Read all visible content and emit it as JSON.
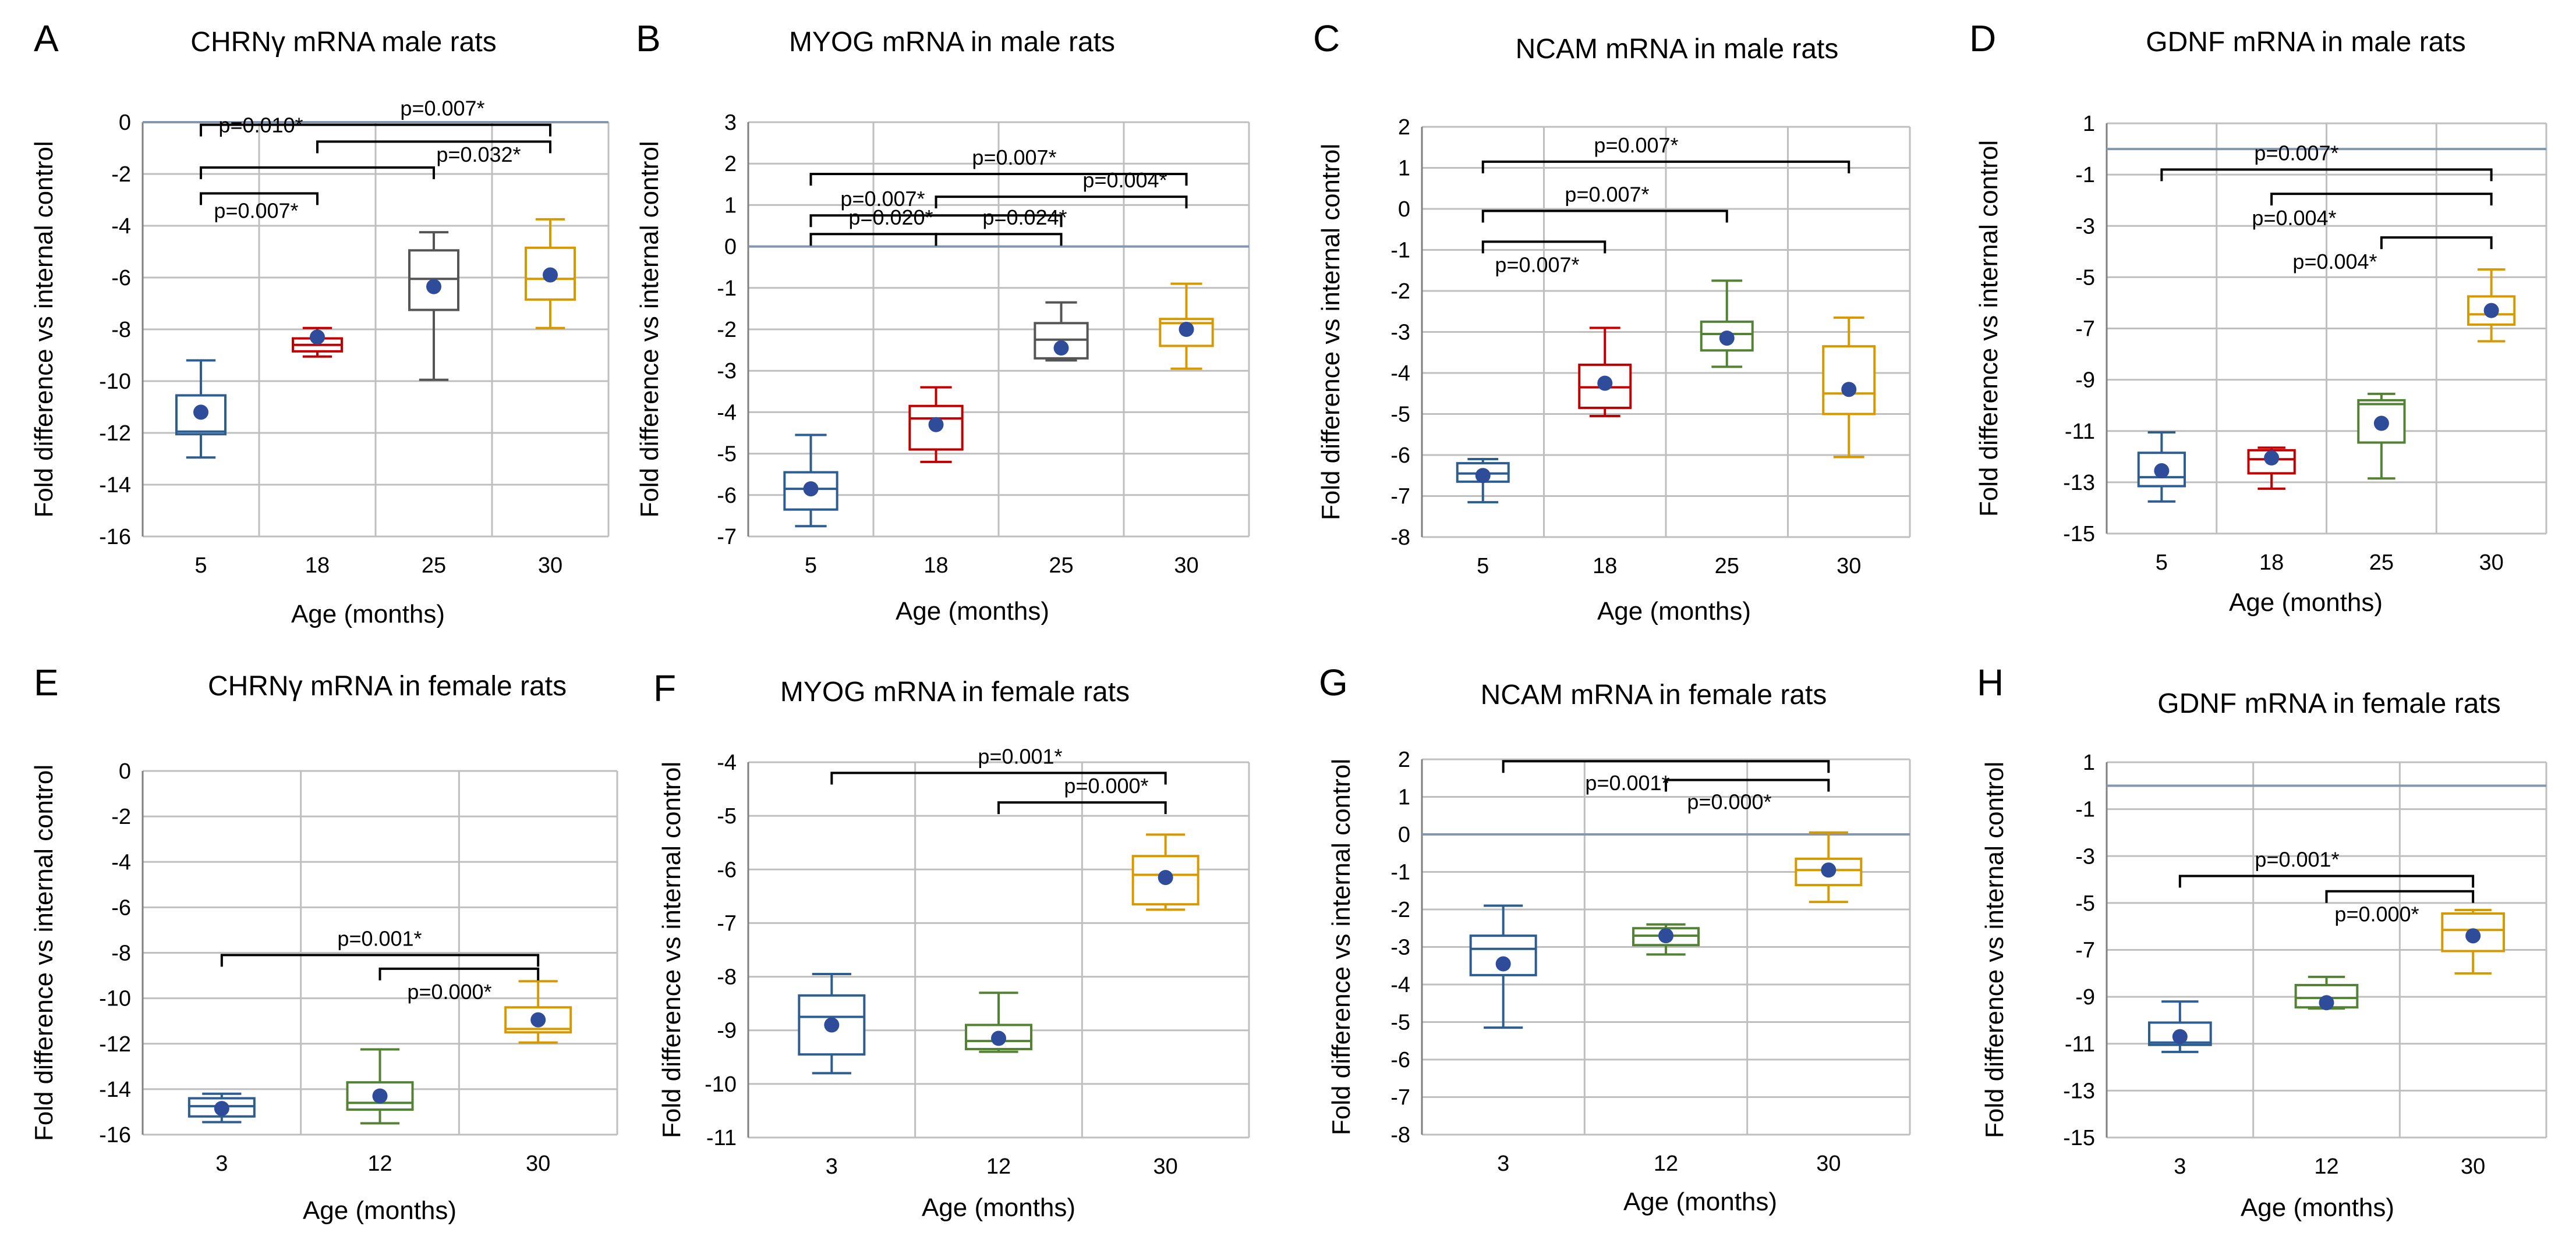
{
  "chart_data": [
    {
      "letter": "A",
      "title": "CHRNγ mRNA male rats",
      "type": "box",
      "xlabel": "Age (months)",
      "ylabel": "Fold difference vs internal control",
      "ylim": [
        -16,
        0
      ],
      "ytick_step": 2,
      "ytick_labels": [
        "-16",
        "-14",
        "-12",
        "-10",
        "-8",
        "-6",
        "-4",
        "-2",
        "0"
      ],
      "ref_line": 0,
      "categories": [
        "5",
        "18",
        "25",
        "30"
      ],
      "boxes": [
        {
          "category": "5",
          "min": -12.95,
          "q1": -12.05,
          "median": -11.95,
          "q3": -10.55,
          "max": -9.2,
          "mean": -11.2,
          "color": "#2E5D8F"
        },
        {
          "category": "18",
          "min": -9.05,
          "q1": -8.85,
          "median": -8.6,
          "q3": -8.35,
          "max": -7.95,
          "mean": -8.3,
          "color": "#C00000"
        },
        {
          "category": "25",
          "min": -9.95,
          "q1": -7.25,
          "median": -6.05,
          "q3": -4.95,
          "max": -4.25,
          "mean": -6.35,
          "color": "#555555"
        },
        {
          "category": "30",
          "min": -7.95,
          "q1": -6.85,
          "median": -6.05,
          "q3": -4.85,
          "max": -3.75,
          "mean": -5.9,
          "color": "#D69A00"
        }
      ],
      "significance": [
        {
          "from": "5",
          "to": "30",
          "y": -0.1,
          "label": "p=0.007*",
          "label_pos": "above"
        },
        {
          "from": "18",
          "to": "30",
          "y": -0.75,
          "label": "p=0.010*",
          "label_pos": "above-left"
        },
        {
          "from": "5",
          "to": "25",
          "y": -1.75,
          "label": "p=0.032*",
          "label_pos": "right"
        },
        {
          "from": "5",
          "to": "18",
          "y": -2.75,
          "label": "p=0.007*",
          "label_pos": "below"
        }
      ]
    },
    {
      "letter": "B",
      "title": "MYOG mRNA in male rats",
      "type": "box",
      "xlabel": "Age (months)",
      "ylabel": "Fold difference  vs internal control",
      "ylim": [
        -7,
        3
      ],
      "ytick_step": 1,
      "ytick_labels": [
        "-7",
        "-6",
        "-5",
        "-4",
        "-3",
        "-2",
        "-1",
        "0",
        "1",
        "2",
        "3"
      ],
      "ref_line": 0,
      "categories": [
        "5",
        "18",
        "25",
        "30"
      ],
      "boxes": [
        {
          "category": "5",
          "min": -6.75,
          "q1": -6.35,
          "median": -5.85,
          "q3": -5.45,
          "max": -4.55,
          "mean": -5.85,
          "color": "#2E5D8F"
        },
        {
          "category": "18",
          "min": -5.2,
          "q1": -4.9,
          "median": -4.15,
          "q3": -3.85,
          "max": -3.4,
          "mean": -4.3,
          "color": "#C00000"
        },
        {
          "category": "25",
          "min": -2.75,
          "q1": -2.7,
          "median": -2.25,
          "q3": -1.85,
          "max": -1.35,
          "mean": -2.45,
          "color": "#555555"
        },
        {
          "category": "30",
          "min": -2.95,
          "q1": -2.4,
          "median": -1.85,
          "q3": -1.75,
          "max": -0.9,
          "mean": -2.0,
          "color": "#D69A00"
        }
      ],
      "significance": [
        {
          "from": "5",
          "to": "30",
          "y": 1.75,
          "label": "p=0.007*",
          "label_pos": "above"
        },
        {
          "from": "18",
          "to": "30",
          "y": 1.2,
          "label": "p=0.004*",
          "label_pos": "above"
        },
        {
          "from": "5",
          "to": "25",
          "y": 0.75,
          "label": "p=0.007*",
          "label_pos": "above-left"
        },
        {
          "from": "5",
          "to": "18",
          "y": 0.3,
          "label": "p=0.020*",
          "label_pos": "above"
        },
        {
          "from": "18",
          "to": "25",
          "y": 0.3,
          "label": "p=0.024*",
          "label_pos": "above"
        }
      ]
    },
    {
      "letter": "C",
      "title": "NCAM mRNA in male rats",
      "type": "box",
      "xlabel": "Age (months)",
      "ylabel": "Fold difference vs internal control",
      "ylim": [
        -8,
        2
      ],
      "ytick_step": 1,
      "ytick_labels": [
        "-8",
        "-7",
        "-6",
        "-5",
        "-4",
        "-3",
        "-2",
        "-1",
        "0",
        "1",
        "2"
      ],
      "ref_line": null,
      "categories": [
        "5",
        "18",
        "25",
        "30"
      ],
      "boxes": [
        {
          "category": "5",
          "min": -7.15,
          "q1": -6.65,
          "median": -6.45,
          "q3": -6.2,
          "max": -6.1,
          "mean": -6.5,
          "color": "#2E5D8F"
        },
        {
          "category": "18",
          "min": -5.05,
          "q1": -4.85,
          "median": -4.35,
          "q3": -3.8,
          "max": -2.9,
          "mean": -4.25,
          "color": "#C00000"
        },
        {
          "category": "25",
          "min": -3.85,
          "q1": -3.45,
          "median": -3.05,
          "q3": -2.75,
          "max": -1.75,
          "mean": -3.15,
          "color": "#548235"
        },
        {
          "category": "30",
          "min": -6.05,
          "q1": -5.0,
          "median": -4.5,
          "q3": -3.35,
          "max": -2.65,
          "mean": -4.4,
          "color": "#D69A00"
        }
      ],
      "significance": [
        {
          "from": "5",
          "to": "30",
          "y": 1.15,
          "label": "p=0.007*",
          "label_pos": "above"
        },
        {
          "from": "5",
          "to": "25",
          "y": -0.05,
          "label": "p=0.007*",
          "label_pos": "above"
        },
        {
          "from": "5",
          "to": "18",
          "y": -0.8,
          "label": "p=0.007*",
          "label_pos": "below"
        }
      ]
    },
    {
      "letter": "D",
      "title": "GDNF mRNA in male rats",
      "type": "box",
      "xlabel": "Age (months)",
      "ylabel": "Fold difference vs internal control",
      "ylim": [
        -15,
        1
      ],
      "ytick_step": 2,
      "ytick_labels": [
        "-15",
        "-13",
        "-11",
        "-9",
        "-7",
        "-5",
        "-3",
        "-1",
        "1"
      ],
      "ref_line": 0,
      "categories": [
        "5",
        "18",
        "25",
        "30"
      ],
      "boxes": [
        {
          "category": "5",
          "min": -13.75,
          "q1": -13.15,
          "median": -12.8,
          "q3": -11.85,
          "max": -11.05,
          "mean": -12.55,
          "color": "#2E5D8F"
        },
        {
          "category": "18",
          "min": -13.25,
          "q1": -12.65,
          "median": -12.1,
          "q3": -11.75,
          "max": -11.65,
          "mean": -12.05,
          "color": "#C00000"
        },
        {
          "category": "25",
          "min": -12.85,
          "q1": -11.45,
          "median": -9.95,
          "q3": -9.8,
          "max": -9.55,
          "mean": -10.7,
          "color": "#548235"
        },
        {
          "category": "30",
          "min": -7.5,
          "q1": -6.85,
          "median": -6.45,
          "q3": -5.75,
          "max": -4.7,
          "mean": -6.3,
          "color": "#D69A00"
        }
      ],
      "significance": [
        {
          "from": "5",
          "to": "30",
          "y": -0.8,
          "label": "p=0.007*",
          "label_pos": "above"
        },
        {
          "from": "18",
          "to": "30",
          "y": -1.75,
          "label": "p=0.004*",
          "label_pos": "below"
        },
        {
          "from": "25",
          "to": "30",
          "y": -3.45,
          "label": "p=0.004*",
          "label_pos": "below"
        }
      ]
    },
    {
      "letter": "E",
      "title": "CHRNγ mRNA in female rats",
      "type": "box",
      "xlabel": "Age (months)",
      "ylabel": "Fold difference vs internal control",
      "ylim": [
        -16,
        0
      ],
      "ytick_step": 2,
      "ytick_labels": [
        "-16",
        "-14",
        "-12",
        "-10",
        "-8",
        "-6",
        "-4",
        "-2",
        "0"
      ],
      "ref_line": null,
      "categories": [
        "3",
        "12",
        "30"
      ],
      "boxes": [
        {
          "category": "3",
          "min": -15.45,
          "q1": -15.2,
          "median": -14.75,
          "q3": -14.4,
          "max": -14.2,
          "mean": -14.85,
          "color": "#2E5D8F"
        },
        {
          "category": "12",
          "min": -15.5,
          "q1": -14.9,
          "median": -14.6,
          "q3": -13.7,
          "max": -12.25,
          "mean": -14.3,
          "color": "#548235"
        },
        {
          "category": "30",
          "min": -11.95,
          "q1": -11.5,
          "median": -11.35,
          "q3": -10.4,
          "max": -9.25,
          "mean": -10.95,
          "color": "#D69A00"
        }
      ],
      "significance": [
        {
          "from": "3",
          "to": "30",
          "y": -8.1,
          "label": "p=0.001*",
          "label_pos": "above"
        },
        {
          "from": "12",
          "to": "30",
          "y": -8.7,
          "label": "p=0.000*",
          "label_pos": "below"
        }
      ]
    },
    {
      "letter": "F",
      "title": "MYOG mRNA in female rats",
      "type": "box",
      "xlabel": "Age (months)",
      "ylabel": "Fold difference vs internal control",
      "ylim": [
        -11,
        -4
      ],
      "ytick_step": 1,
      "ytick_labels": [
        "-11",
        "-10",
        "-9",
        "-8",
        "-7",
        "-6",
        "-5",
        "-4"
      ],
      "ref_line": null,
      "categories": [
        "3",
        "12",
        "30"
      ],
      "boxes": [
        {
          "category": "3",
          "min": -9.8,
          "q1": -9.45,
          "median": -8.75,
          "q3": -8.35,
          "max": -7.95,
          "mean": -8.9,
          "color": "#2E5D8F"
        },
        {
          "category": "12",
          "min": -9.4,
          "q1": -9.35,
          "median": -9.2,
          "q3": -8.9,
          "max": -8.3,
          "mean": -9.15,
          "color": "#548235"
        },
        {
          "category": "30",
          "min": -6.75,
          "q1": -6.65,
          "median": -6.1,
          "q3": -5.75,
          "max": -5.35,
          "mean": -6.15,
          "color": "#D69A00"
        }
      ],
      "significance": [
        {
          "from": "3",
          "to": "30",
          "y": -4.2,
          "label": "p=0.001*",
          "label_pos": "above"
        },
        {
          "from": "12",
          "to": "30",
          "y": -4.75,
          "label": "p=0.000*",
          "label_pos": "above"
        }
      ]
    },
    {
      "letter": "G",
      "title": "NCAM mRNA in female rats",
      "type": "box",
      "xlabel": "Age (months)",
      "ylabel": "Fold difference vs internal control",
      "ylim": [
        -8,
        2
      ],
      "ytick_step": 1,
      "ytick_labels": [
        "-8",
        "-7",
        "-6",
        "-5",
        "-4",
        "-3",
        "-2",
        "-1",
        "0",
        "1",
        "2"
      ],
      "ref_line": 0,
      "categories": [
        "3",
        "12",
        "30"
      ],
      "boxes": [
        {
          "category": "3",
          "min": -5.15,
          "q1": -3.75,
          "median": -3.05,
          "q3": -2.7,
          "max": -1.9,
          "mean": -3.45,
          "color": "#2E5D8F"
        },
        {
          "category": "12",
          "min": -3.2,
          "q1": -2.95,
          "median": -2.7,
          "q3": -2.5,
          "max": -2.4,
          "mean": -2.7,
          "color": "#548235"
        },
        {
          "category": "30",
          "min": -1.8,
          "q1": -1.35,
          "median": -0.95,
          "q3": -0.65,
          "max": 0.05,
          "mean": -0.95,
          "color": "#D69A00"
        }
      ],
      "significance": [
        {
          "from": "3",
          "to": "30",
          "y": 1.95,
          "label": "p=0.001*",
          "label_pos": "below-left"
        },
        {
          "from": "12",
          "to": "30",
          "y": 1.45,
          "label": "p=0.000*",
          "label_pos": "below"
        }
      ]
    },
    {
      "letter": "H",
      "title": "GDNF mRNA in female rats",
      "type": "box",
      "xlabel": "Age (months)",
      "ylabel": "Fold difference vs internal control",
      "ylim": [
        -15,
        1
      ],
      "ytick_step": 2,
      "ytick_labels": [
        "-15",
        "-13",
        "-11",
        "-9",
        "-7",
        "-5",
        "-3",
        "-1",
        "1"
      ],
      "ref_line": 0,
      "categories": [
        "3",
        "12",
        "30"
      ],
      "boxes": [
        {
          "category": "3",
          "min": -11.35,
          "q1": -11.05,
          "median": -10.95,
          "q3": -10.1,
          "max": -9.2,
          "mean": -10.7,
          "color": "#2E5D8F"
        },
        {
          "category": "12",
          "min": -9.5,
          "q1": -9.45,
          "median": -9.05,
          "q3": -8.5,
          "max": -8.15,
          "mean": -9.25,
          "color": "#548235"
        },
        {
          "category": "30",
          "min": -8.0,
          "q1": -7.05,
          "median": -6.15,
          "q3": -5.45,
          "max": -5.3,
          "mean": -6.4,
          "color": "#D69A00"
        }
      ],
      "significance": [
        {
          "from": "3",
          "to": "30",
          "y": -3.85,
          "label": "p=0.001*",
          "label_pos": "above"
        },
        {
          "from": "12",
          "to": "30",
          "y": -4.5,
          "label": "p=0.000*",
          "label_pos": "below"
        }
      ]
    }
  ],
  "colors": {
    "grid": "#BFBFBF",
    "ref_line": "#8497B0",
    "mean_dot": "#2F4C9B"
  }
}
